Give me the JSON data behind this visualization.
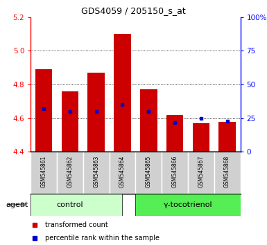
{
  "title": "GDS4059 / 205150_s_at",
  "samples": [
    "GSM545861",
    "GSM545862",
    "GSM545863",
    "GSM545864",
    "GSM545865",
    "GSM545866",
    "GSM545867",
    "GSM545868"
  ],
  "red_values": [
    4.89,
    4.76,
    4.87,
    5.1,
    4.77,
    4.62,
    4.57,
    4.58
  ],
  "blue_percentile": [
    32,
    30,
    30,
    35,
    30,
    22,
    25,
    23
  ],
  "bar_bottom": 4.4,
  "ylim": [
    4.4,
    5.2
  ],
  "y2lim": [
    0,
    100
  ],
  "y_ticks": [
    4.4,
    4.6,
    4.8,
    5.0,
    5.2
  ],
  "y2_ticks": [
    0,
    25,
    50,
    75,
    100
  ],
  "left_color": "#ff0000",
  "right_color": "#0000ff",
  "group1_label": "control",
  "group2_label": "γ-tocotrienol",
  "group1_bg": "#ccffcc",
  "group2_bg": "#55ee55",
  "bar_color": "#cc0000",
  "blue_square_color": "#0000cc",
  "agent_label": "agent",
  "legend_red": "transformed count",
  "legend_blue": "percentile rank within the sample",
  "grid_lines": [
    4.6,
    4.8,
    5.0
  ],
  "label_bg": "#d0d0d0"
}
